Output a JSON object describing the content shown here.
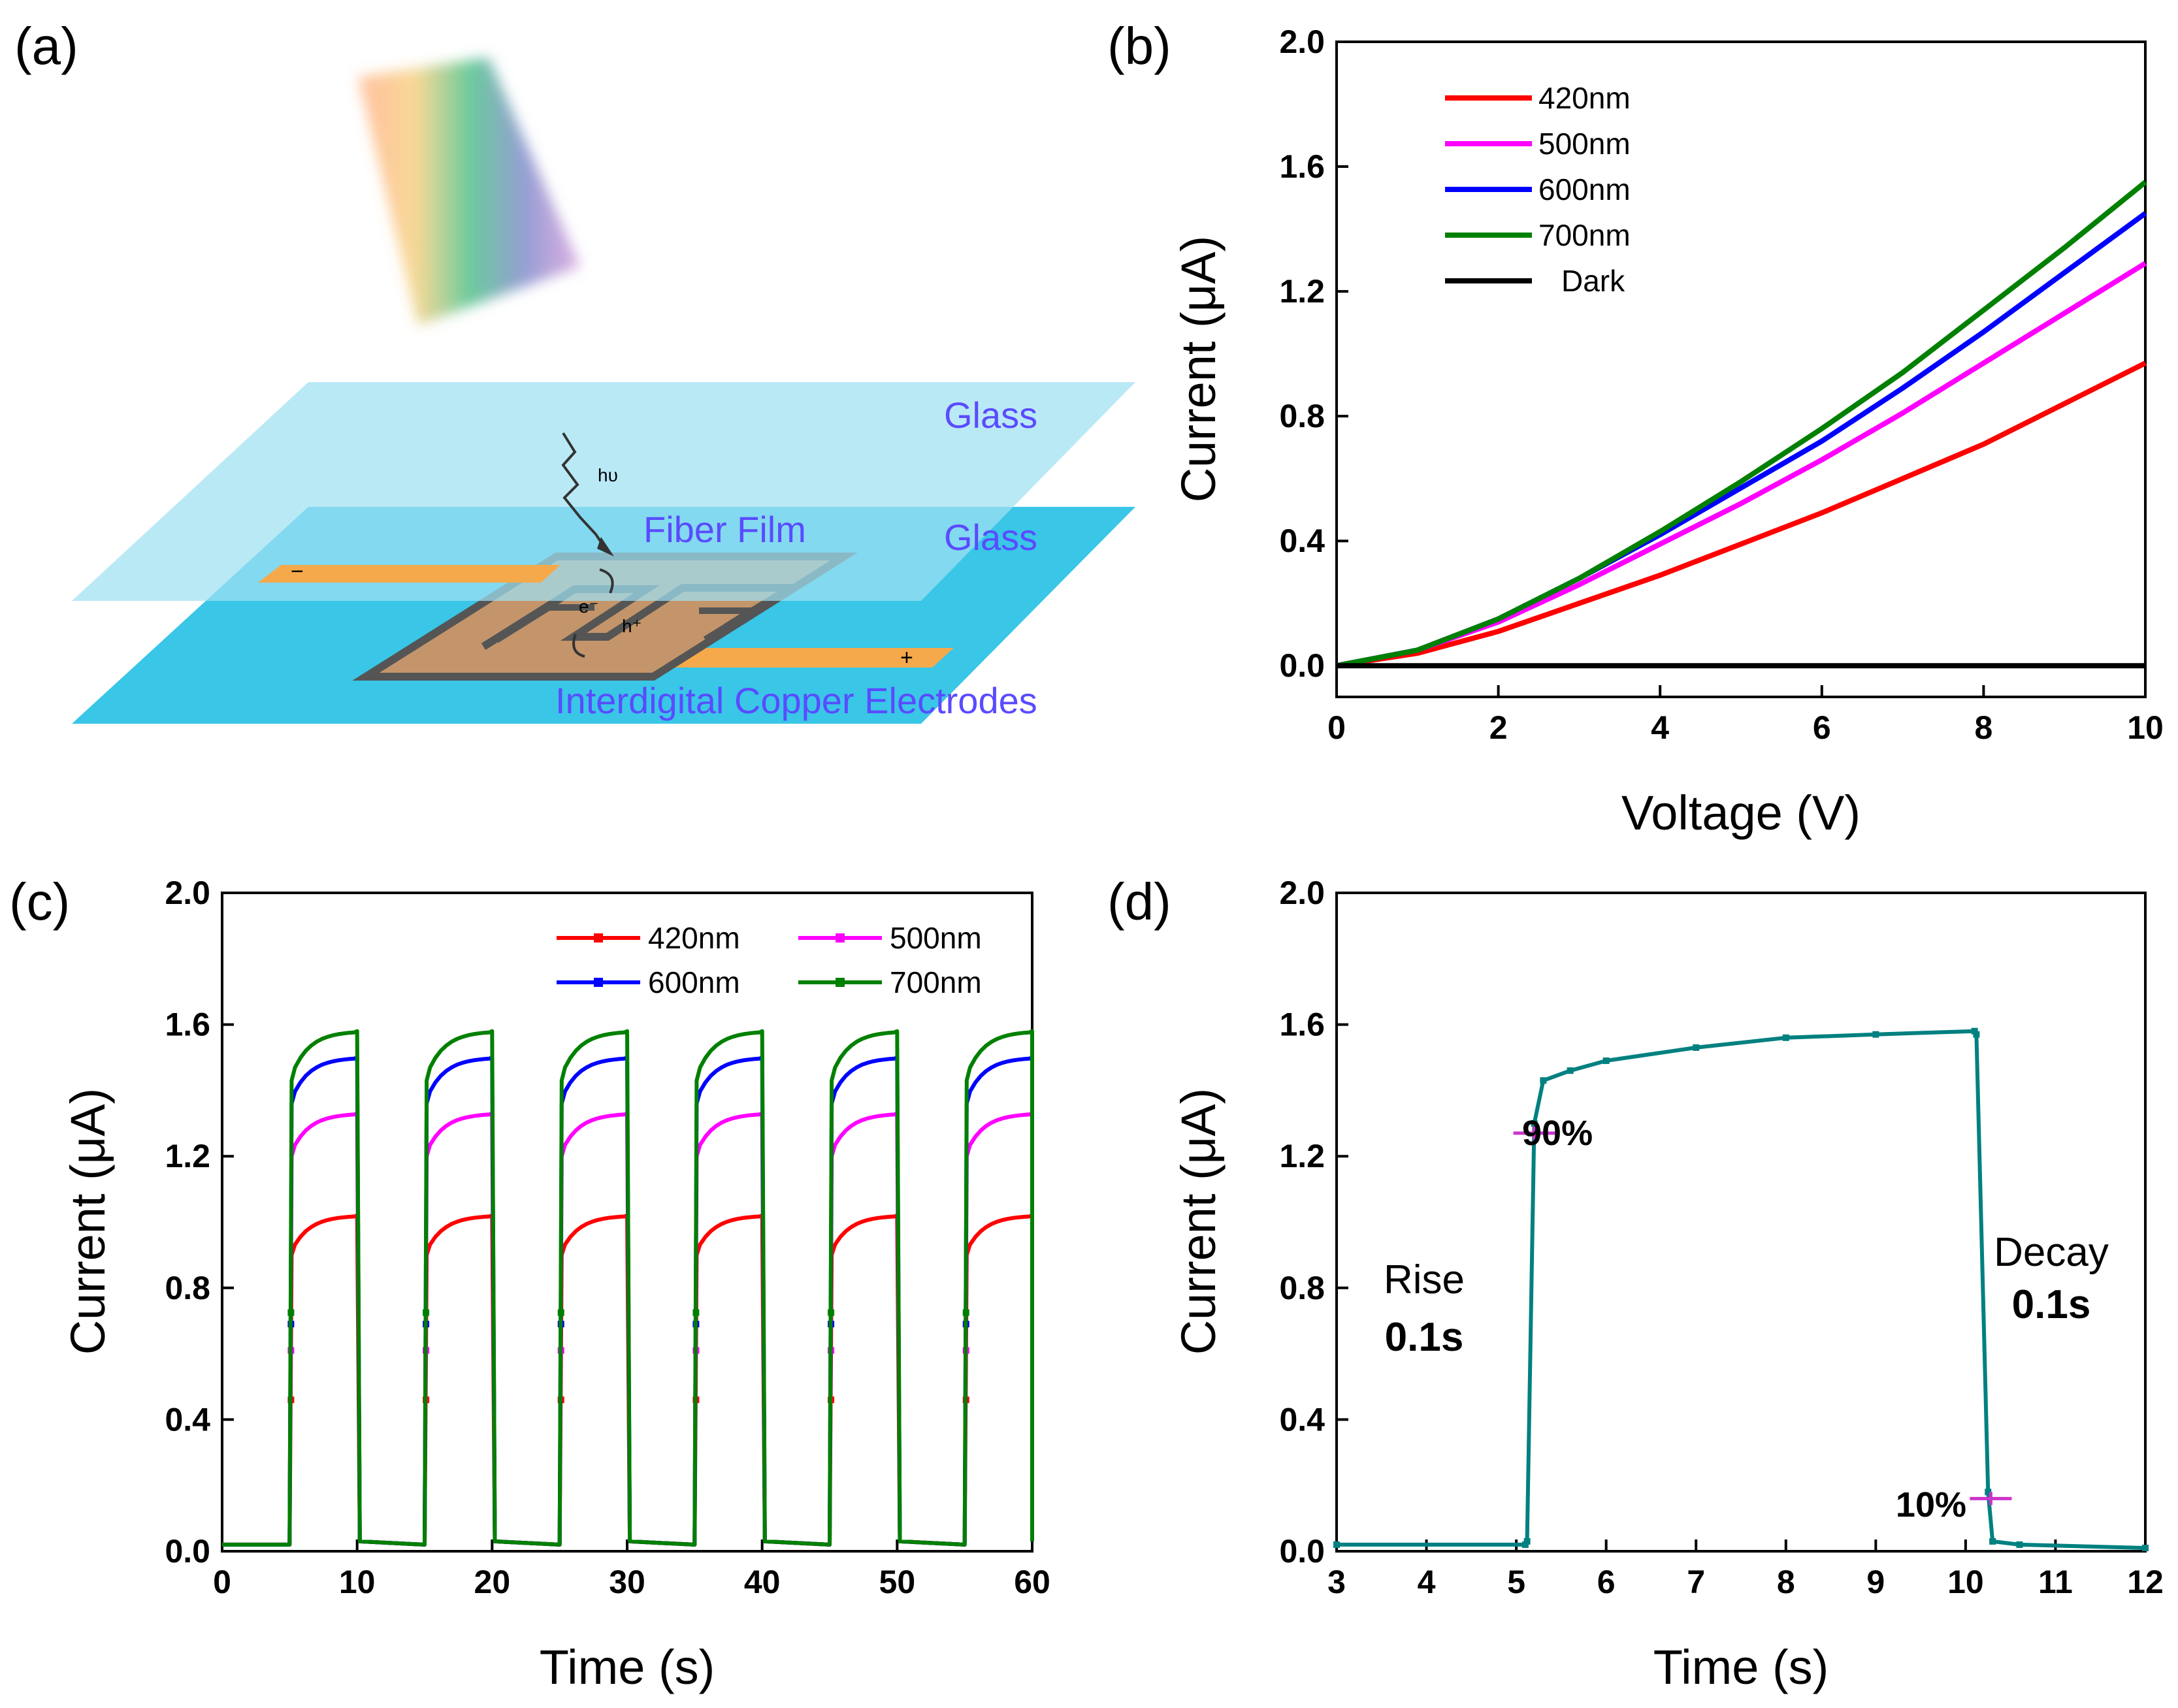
{
  "panel_labels": {
    "a": "(a)",
    "b": "(b)",
    "c": "(c)",
    "d": "(d)"
  },
  "diagram": {
    "glass_top": "Glass",
    "glass_bottom": "Glass",
    "fiber_film": "Fiber Film",
    "electrodes": "Interdigital Copper Electrodes",
    "photon": "hυ",
    "electron": "e⁻",
    "hole": "h⁺",
    "minus": "−",
    "plus": "+"
  },
  "colors": {
    "c420": "#ff0000",
    "c500": "#ff00ff",
    "c600": "#0000ff",
    "c700": "#008000",
    "dark": "#000000",
    "teal": "#008080",
    "glass": "#7fd6ee",
    "film": "#c4956a",
    "electrode": "#f5a94a"
  },
  "chart_data": [
    {
      "id": "b",
      "type": "line",
      "title": "",
      "xlabel": "Voltage (V)",
      "ylabel": "Current (μA)",
      "xlim": [
        0,
        10
      ],
      "ylim": [
        -0.1,
        2.0
      ],
      "xticks": [
        "0",
        "2",
        "4",
        "6",
        "8",
        "10"
      ],
      "yticks": [
        "0.0",
        "0.4",
        "0.8",
        "1.2",
        "1.6",
        "2.0"
      ],
      "x": [
        0,
        1,
        2,
        3,
        4,
        5,
        6,
        7,
        8,
        9,
        10
      ],
      "series": [
        {
          "name": "420nm",
          "values": [
            0,
            0.04,
            0.11,
            0.2,
            0.29,
            0.39,
            0.49,
            0.6,
            0.71,
            0.84,
            0.97
          ]
        },
        {
          "name": "500nm",
          "values": [
            0,
            0.05,
            0.14,
            0.26,
            0.39,
            0.52,
            0.66,
            0.81,
            0.97,
            1.13,
            1.29
          ]
        },
        {
          "name": "600nm",
          "values": [
            0,
            0.05,
            0.15,
            0.28,
            0.42,
            0.57,
            0.72,
            0.89,
            1.07,
            1.26,
            1.45
          ]
        },
        {
          "name": "700nm",
          "values": [
            0,
            0.05,
            0.15,
            0.28,
            0.43,
            0.59,
            0.76,
            0.94,
            1.14,
            1.34,
            1.55
          ]
        },
        {
          "name": "Dark",
          "values": [
            0,
            0,
            0,
            0,
            0,
            0,
            0,
            0,
            0,
            0,
            0
          ]
        }
      ]
    },
    {
      "id": "c",
      "type": "line",
      "title": "",
      "xlabel": "Time (s)",
      "ylabel": "Current (μA)",
      "xlim": [
        0,
        60
      ],
      "ylim": [
        0,
        2.0
      ],
      "xticks": [
        "0",
        "10",
        "20",
        "30",
        "40",
        "50",
        "60"
      ],
      "yticks": [
        "0.0",
        "0.4",
        "0.8",
        "1.2",
        "1.6",
        "2.0"
      ],
      "cycles": {
        "on": [
          5,
          15,
          25,
          35,
          45,
          55
        ],
        "off": [
          10,
          20,
          30,
          40,
          50,
          60
        ]
      },
      "series": [
        {
          "name": "420nm",
          "baseline": 0.02,
          "jump": 0.9,
          "plateau": 1.02
        },
        {
          "name": "500nm",
          "baseline": 0.02,
          "jump": 1.2,
          "plateau": 1.33
        },
        {
          "name": "600nm",
          "baseline": 0.02,
          "jump": 1.36,
          "plateau": 1.5
        },
        {
          "name": "700nm",
          "baseline": 0.02,
          "jump": 1.43,
          "plateau": 1.58
        }
      ]
    },
    {
      "id": "d",
      "type": "line",
      "title": "",
      "xlabel": "Time (s)",
      "ylabel": "Current (μA)",
      "xlim": [
        3,
        12
      ],
      "ylim": [
        0,
        2.0
      ],
      "xticks": [
        "3",
        "4",
        "5",
        "6",
        "7",
        "8",
        "9",
        "10",
        "11",
        "12"
      ],
      "yticks": [
        "0.0",
        "0.4",
        "0.8",
        "1.2",
        "1.6",
        "2.0"
      ],
      "points": [
        [
          3,
          0.02
        ],
        [
          5.1,
          0.02
        ],
        [
          5.12,
          0.03
        ],
        [
          5.2,
          1.3
        ],
        [
          5.3,
          1.43
        ],
        [
          5.6,
          1.46
        ],
        [
          6,
          1.49
        ],
        [
          7,
          1.53
        ],
        [
          8,
          1.56
        ],
        [
          9,
          1.57
        ],
        [
          10.1,
          1.58
        ],
        [
          10.12,
          1.57
        ],
        [
          10.25,
          0.18
        ],
        [
          10.3,
          0.03
        ],
        [
          10.6,
          0.02
        ],
        [
          12,
          0.01
        ]
      ],
      "markers": [
        {
          "label": "90%",
          "x": 5.2,
          "y": 1.27
        },
        {
          "label": "10%",
          "x": 10.28,
          "y": 0.16
        }
      ],
      "annotations": {
        "rise_label": "Rise",
        "rise_value": "0.1s",
        "decay_label": "Decay",
        "decay_value": "0.1s"
      }
    }
  ]
}
